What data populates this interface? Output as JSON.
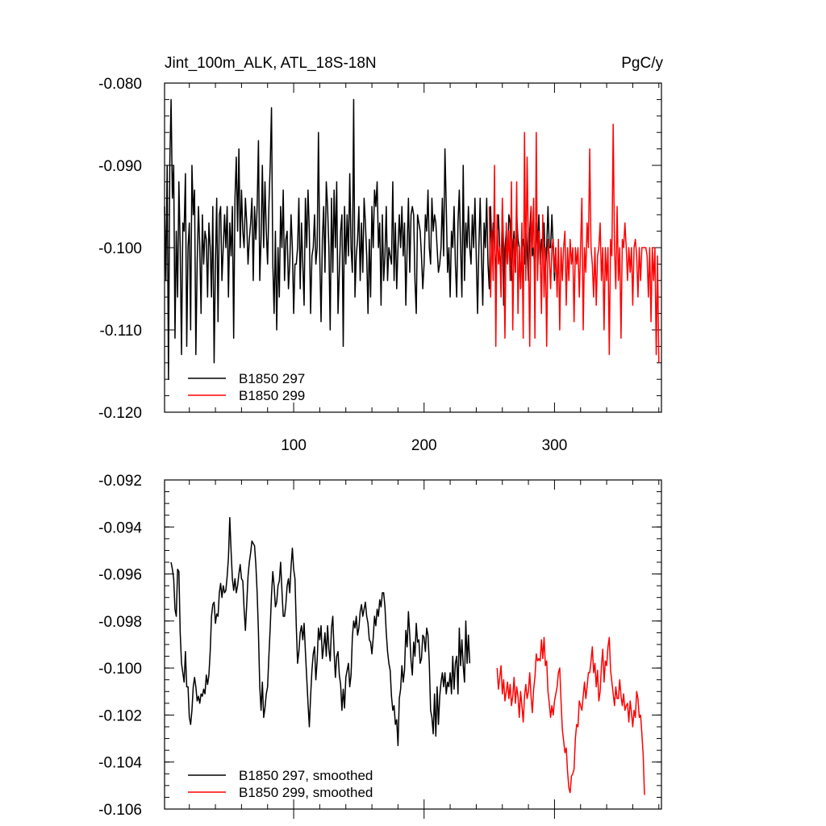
{
  "chart_data": [
    {
      "type": "line",
      "title_left": "Jint_100m_ALK, ATL_18S-18N",
      "title_right": "PgC/y",
      "xlim": [
        1,
        382
      ],
      "ylim": [
        -0.12,
        -0.08
      ],
      "x_ticks": [
        100,
        200,
        300
      ],
      "y_ticks": [
        -0.12,
        -0.11,
        -0.1,
        -0.09,
        -0.08
      ],
      "y_tick_labels": [
        "-0.120",
        "-0.110",
        "-0.100",
        "-0.090",
        "-0.080"
      ],
      "legend": [
        "B1850 297",
        "B1850 299"
      ],
      "series": [
        {
          "name": "B1850 297",
          "color": "#000000",
          "x_start": 1,
          "values": [
            -0.095,
            -0.104,
            -0.09,
            -0.116,
            -0.09,
            -0.082,
            -0.094,
            -0.09,
            -0.111,
            -0.098,
            -0.106,
            -0.092,
            -0.1,
            -0.113,
            -0.097,
            -0.098,
            -0.091,
            -0.112,
            -0.1,
            -0.097,
            -0.11,
            -0.09,
            -0.096,
            -0.093,
            -0.113,
            -0.102,
            -0.095,
            -0.1,
            -0.108,
            -0.096,
            -0.102,
            -0.098,
            -0.099,
            -0.106,
            -0.097,
            -0.1,
            -0.106,
            -0.095,
            -0.114,
            -0.102,
            -0.094,
            -0.109,
            -0.096,
            -0.095,
            -0.104,
            -0.1,
            -0.096,
            -0.1,
            -0.095,
            -0.106,
            -0.097,
            -0.101,
            -0.095,
            -0.111,
            -0.094,
            -0.089,
            -0.098,
            -0.088,
            -0.1,
            -0.093,
            -0.098,
            -0.1,
            -0.094,
            -0.097,
            -0.102,
            -0.099,
            -0.097,
            -0.094,
            -0.104,
            -0.095,
            -0.099,
            -0.095,
            -0.087,
            -0.104,
            -0.099,
            -0.09,
            -0.1,
            -0.092,
            -0.098,
            -0.102,
            -0.095,
            -0.09,
            -0.083,
            -0.102,
            -0.108,
            -0.098,
            -0.11,
            -0.1,
            -0.106,
            -0.095,
            -0.1,
            -0.093,
            -0.104,
            -0.099,
            -0.098,
            -0.105,
            -0.102,
            -0.096,
            -0.1,
            -0.108,
            -0.102,
            -0.102,
            -0.1,
            -0.094,
            -0.105,
            -0.097,
            -0.102,
            -0.107,
            -0.094,
            -0.1,
            -0.093,
            -0.098,
            -0.108,
            -0.101,
            -0.1,
            -0.096,
            -0.102,
            -0.1,
            -0.086,
            -0.101,
            -0.109,
            -0.099,
            -0.095,
            -0.103,
            -0.092,
            -0.095,
            -0.1,
            -0.11,
            -0.094,
            -0.103,
            -0.093,
            -0.1,
            -0.092,
            -0.108,
            -0.103,
            -0.098,
            -0.096,
            -0.112,
            -0.095,
            -0.102,
            -0.096,
            -0.101,
            -0.091,
            -0.1,
            -0.103,
            -0.082,
            -0.106,
            -0.101,
            -0.099,
            -0.095,
            -0.104,
            -0.097,
            -0.103,
            -0.094,
            -0.097,
            -0.101,
            -0.108,
            -0.099,
            -0.106,
            -0.095,
            -0.1,
            -0.093,
            -0.095,
            -0.092,
            -0.1,
            -0.097,
            -0.107,
            -0.096,
            -0.104,
            -0.101,
            -0.095,
            -0.104,
            -0.1,
            -0.101,
            -0.102,
            -0.092,
            -0.104,
            -0.097,
            -0.105,
            -0.1,
            -0.096,
            -0.1,
            -0.095,
            -0.101,
            -0.097,
            -0.107,
            -0.1,
            -0.094,
            -0.103,
            -0.096,
            -0.095,
            -0.096,
            -0.104,
            -0.108,
            -0.096,
            -0.097,
            -0.098,
            -0.101,
            -0.105,
            -0.102,
            -0.096,
            -0.098,
            -0.093,
            -0.1,
            -0.102,
            -0.094,
            -0.098,
            -0.096,
            -0.097,
            -0.1,
            -0.103,
            -0.102,
            -0.1,
            -0.094,
            -0.101,
            -0.088,
            -0.095,
            -0.103,
            -0.1,
            -0.106,
            -0.098,
            -0.1,
            -0.095,
            -0.102,
            -0.106,
            -0.097,
            -0.093,
            -0.1,
            -0.106,
            -0.09,
            -0.104,
            -0.097,
            -0.1,
            -0.095,
            -0.1,
            -0.102,
            -0.096,
            -0.1,
            -0.094,
            -0.101,
            -0.108,
            -0.1,
            -0.094,
            -0.101,
            -0.107,
            -0.097,
            -0.1,
            -0.094,
            -0.102,
            -0.105,
            -0.095,
            -0.101,
            -0.097,
            -0.098,
            -0.104,
            -0.099,
            -0.096,
            -0.1,
            -0.104,
            -0.095,
            -0.107,
            -0.1,
            -0.098,
            -0.102,
            -0.096,
            -0.097,
            -0.104,
            -0.1,
            -0.098,
            -0.103,
            -0.096,
            -0.099,
            -0.1,
            -0.105,
            -0.1,
            -0.099,
            -0.102,
            -0.097,
            -0.1,
            -0.104,
            -0.098,
            -0.095,
            -0.101,
            -0.1,
            -0.104,
            -0.097,
            -0.1,
            -0.096,
            -0.102,
            -0.099,
            -0.1,
            -0.097,
            -0.103,
            -0.1,
            -0.095,
            -0.1,
            -0.1,
            -0.096,
            -0.1,
            -0.104,
            -0.1
          ]
        },
        {
          "name": "B1850 299",
          "color": "#ff0000",
          "x_start": 250,
          "values": [
            -0.095,
            -0.106,
            -0.098,
            -0.104,
            -0.09,
            -0.112,
            -0.096,
            -0.102,
            -0.1,
            -0.106,
            -0.094,
            -0.1,
            -0.111,
            -0.097,
            -0.102,
            -0.098,
            -0.104,
            -0.092,
            -0.11,
            -0.099,
            -0.103,
            -0.092,
            -0.108,
            -0.1,
            -0.105,
            -0.097,
            -0.111,
            -0.086,
            -0.104,
            -0.089,
            -0.1,
            -0.112,
            -0.095,
            -0.1,
            -0.094,
            -0.111,
            -0.086,
            -0.104,
            -0.098,
            -0.1,
            -0.108,
            -0.096,
            -0.106,
            -0.1,
            -0.112,
            -0.099,
            -0.101,
            -0.105,
            -0.1,
            -0.099,
            -0.103,
            -0.1,
            -0.106,
            -0.099,
            -0.11,
            -0.1,
            -0.104,
            -0.1,
            -0.098,
            -0.107,
            -0.1,
            -0.104,
            -0.099,
            -0.102,
            -0.1,
            -0.109,
            -0.1,
            -0.102,
            -0.1,
            -0.106,
            -0.1,
            -0.094,
            -0.11,
            -0.1,
            -0.103,
            -0.097,
            -0.1,
            -0.088,
            -0.1,
            -0.102,
            -0.106,
            -0.1,
            -0.107,
            -0.101,
            -0.1,
            -0.097,
            -0.104,
            -0.1,
            -0.11,
            -0.1,
            -0.104,
            -0.1,
            -0.113,
            -0.099,
            -0.101,
            -0.085,
            -0.1,
            -0.105,
            -0.095,
            -0.104,
            -0.1,
            -0.111,
            -0.099,
            -0.1,
            -0.097,
            -0.1,
            -0.104,
            -0.1,
            -0.103,
            -0.1,
            -0.107,
            -0.1,
            -0.099,
            -0.101,
            -0.106,
            -0.1,
            -0.104,
            -0.1,
            -0.1,
            -0.1,
            -0.1,
            -0.101,
            -0.106,
            -0.1,
            -0.109,
            -0.1,
            -0.104,
            -0.1,
            -0.113,
            -0.101,
            -0.114
          ]
        }
      ]
    },
    {
      "type": "line",
      "xlim": [
        1,
        382
      ],
      "ylim": [
        -0.106,
        -0.092
      ],
      "x_ticks": [
        100,
        200,
        300
      ],
      "y_ticks": [
        -0.106,
        -0.104,
        -0.102,
        -0.1,
        -0.098,
        -0.096,
        -0.094,
        -0.092
      ],
      "y_tick_labels": [
        "-0.106",
        "-0.104",
        "-0.102",
        "-0.100",
        "-0.098",
        "-0.096",
        "-0.094",
        "-0.092"
      ],
      "legend": [
        "B1850 297, smoothed",
        "B1850 299, smoothed"
      ],
      "series": [
        {
          "name": "B1850 297, smoothed",
          "color": "#000000",
          "x_start": 6,
          "values": [
            -0.0955,
            -0.0958,
            -0.0962,
            -0.0975,
            -0.0978,
            -0.0958,
            -0.0959,
            -0.0985,
            -0.0998,
            -0.1002,
            -0.1006,
            -0.0993,
            -0.1008,
            -0.1008,
            -0.1021,
            -0.1024,
            -0.1018,
            -0.1008,
            -0.1004,
            -0.1008,
            -0.1014,
            -0.1012,
            -0.1015,
            -0.1011,
            -0.1012,
            -0.1009,
            -0.1011,
            -0.1003,
            -0.1007,
            -0.1003,
            -0.0993,
            -0.0978,
            -0.0973,
            -0.0972,
            -0.0981,
            -0.0977,
            -0.0978,
            -0.0968,
            -0.0964,
            -0.097,
            -0.0965,
            -0.0968,
            -0.0967,
            -0.0961,
            -0.0953,
            -0.0936,
            -0.095,
            -0.0962,
            -0.0967,
            -0.0962,
            -0.0968,
            -0.0965,
            -0.096,
            -0.0956,
            -0.0962,
            -0.0963,
            -0.0975,
            -0.0984,
            -0.0973,
            -0.0961,
            -0.0955,
            -0.0951,
            -0.0946,
            -0.0947,
            -0.0948,
            -0.0956,
            -0.0968,
            -0.0985,
            -0.1008,
            -0.1018,
            -0.1006,
            -0.1021,
            -0.1017,
            -0.1011,
            -0.1008,
            -0.0995,
            -0.0983,
            -0.0969,
            -0.0959,
            -0.0965,
            -0.0974,
            -0.0972,
            -0.0965,
            -0.0963,
            -0.0955,
            -0.0967,
            -0.0978,
            -0.0978,
            -0.0973,
            -0.0965,
            -0.0962,
            -0.0968,
            -0.0957,
            -0.0949,
            -0.0958,
            -0.0962,
            -0.0982,
            -0.0998,
            -0.0993,
            -0.0985,
            -0.0982,
            -0.0988,
            -0.0981,
            -0.0993,
            -0.1004,
            -0.1015,
            -0.1025,
            -0.1012,
            -0.1001,
            -0.0994,
            -0.0991,
            -0.1005,
            -0.0997,
            -0.0983,
            -0.0988,
            -0.0982,
            -0.0996,
            -0.0991,
            -0.0985,
            -0.0995,
            -0.0982,
            -0.0992,
            -0.0997,
            -0.0983,
            -0.0978,
            -0.0993,
            -0.1004,
            -0.0995,
            -0.0993,
            -0.1003,
            -0.1007,
            -0.1018,
            -0.1009,
            -0.1017,
            -0.1004,
            -0.1001,
            -0.0998,
            -0.1008,
            -0.1003,
            -0.0987,
            -0.098,
            -0.0983,
            -0.0978,
            -0.0986,
            -0.0983,
            -0.0976,
            -0.0973,
            -0.0978,
            -0.0975,
            -0.0972,
            -0.0978,
            -0.0981,
            -0.0988,
            -0.0989,
            -0.0994,
            -0.0987,
            -0.0978,
            -0.0982,
            -0.0975,
            -0.0978,
            -0.0971,
            -0.0974,
            -0.0968,
            -0.0968,
            -0.0974,
            -0.0985,
            -0.0993,
            -0.0998,
            -0.1001,
            -0.1012,
            -0.1018,
            -0.1016,
            -0.1024,
            -0.1022,
            -0.1033,
            -0.1013,
            -0.1009,
            -0.0999,
            -0.1006,
            -0.1001,
            -0.0984,
            -0.0991,
            -0.0976,
            -0.0986,
            -0.0997,
            -0.1003,
            -0.0989,
            -0.0995,
            -0.0981,
            -0.0989,
            -0.0988,
            -0.0998,
            -0.0996,
            -0.0986,
            -0.0987,
            -0.0993,
            -0.0983,
            -0.0986,
            -0.0998,
            -0.1018,
            -0.1021,
            -0.1028,
            -0.1011,
            -0.1029,
            -0.1008,
            -0.1024,
            -0.1012,
            -0.1006,
            -0.1002,
            -0.1008,
            -0.1002,
            -0.1011,
            -0.1006,
            -0.1008,
            -0.1002,
            -0.1011,
            -0.0995,
            -0.1009,
            -0.0998,
            -0.0995,
            -0.1011,
            -0.0983,
            -0.0999,
            -0.0988,
            -0.0999,
            -0.1006,
            -0.098,
            -0.0998,
            -0.0986,
            -0.0998
          ]
        },
        {
          "name": "B1850 299, smoothed",
          "color": "#ff0000",
          "x_start": 256,
          "values": [
            -0.1,
            -0.1009,
            -0.1004,
            -0.0999,
            -0.1011,
            -0.1005,
            -0.1014,
            -0.101,
            -0.1006,
            -0.1013,
            -0.1007,
            -0.1016,
            -0.1012,
            -0.1004,
            -0.1015,
            -0.1008,
            -0.1012,
            -0.1021,
            -0.101,
            -0.1016,
            -0.1023,
            -0.1012,
            -0.1007,
            -0.1013,
            -0.101,
            -0.1002,
            -0.1012,
            -0.1019,
            -0.1009,
            -0.1004,
            -0.0994,
            -0.0997,
            -0.0996,
            -0.0997,
            -0.0988,
            -0.0996,
            -0.0987,
            -0.0999,
            -0.0997,
            -0.101,
            -0.1015,
            -0.1021,
            -0.1016,
            -0.102,
            -0.1014,
            -0.1011,
            -0.1008,
            -0.1002,
            -0.1,
            -0.1014,
            -0.1026,
            -0.1031,
            -0.1036,
            -0.1034,
            -0.1044,
            -0.1051,
            -0.1053,
            -0.1046,
            -0.1045,
            -0.1043,
            -0.103,
            -0.1024,
            -0.1025,
            -0.1014,
            -0.1016,
            -0.1018,
            -0.1012,
            -0.1006,
            -0.1013,
            -0.1008,
            -0.1002,
            -0.1002,
            -0.0997,
            -0.0991,
            -0.1002,
            -0.0998,
            -0.1008,
            -0.1001,
            -0.1014,
            -0.101,
            -0.0999,
            -0.0992,
            -0.1006,
            -0.0997,
            -0.0999,
            -0.0991,
            -0.0987,
            -0.1001,
            -0.1006,
            -0.1011,
            -0.1016,
            -0.1008,
            -0.1013,
            -0.1013,
            -0.1005,
            -0.1012,
            -0.1016,
            -0.1011,
            -0.1018,
            -0.1016,
            -0.1015,
            -0.1023,
            -0.1014,
            -0.1019,
            -0.1025,
            -0.1018,
            -0.1021,
            -0.101,
            -0.1013,
            -0.1021,
            -0.102,
            -0.1028,
            -0.1037,
            -0.1054
          ]
        }
      ]
    }
  ]
}
